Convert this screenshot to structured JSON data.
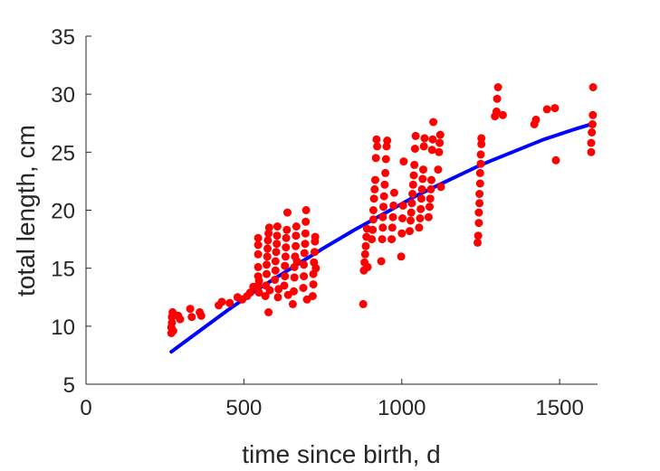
{
  "chart_data": {
    "type": "scatter",
    "xlabel": "time since birth, d",
    "ylabel": "total length, cm",
    "xlim": [
      0,
      1620
    ],
    "ylim": [
      5,
      35
    ],
    "xticks": [
      0,
      500,
      1000,
      1500
    ],
    "yticks": [
      5,
      10,
      15,
      20,
      25,
      30,
      35
    ],
    "grid": false,
    "colors": {
      "points": "#ff0000",
      "fit": "#0000ff",
      "axis": "#262626"
    },
    "series": [
      {
        "kind": "points",
        "points": [
          [
            270,
            9.4
          ],
          [
            270,
            9.9
          ],
          [
            272,
            10.3
          ],
          [
            272,
            10.8
          ],
          [
            274,
            11.2
          ],
          [
            276,
            9.6
          ],
          [
            278,
            11.0
          ],
          [
            292,
            10.9
          ],
          [
            298,
            10.6
          ],
          [
            330,
            11.5
          ],
          [
            335,
            10.8
          ],
          [
            360,
            11.2
          ],
          [
            365,
            10.9
          ],
          [
            420,
            11.8
          ],
          [
            430,
            12.1
          ],
          [
            455,
            12.0
          ],
          [
            480,
            12.5
          ],
          [
            495,
            12.3
          ],
          [
            510,
            12.6
          ],
          [
            520,
            12.9
          ],
          [
            530,
            13.4
          ],
          [
            545,
            13.5
          ],
          [
            545,
            14.3
          ],
          [
            545,
            15.1
          ],
          [
            545,
            16.2
          ],
          [
            545,
            17.0
          ],
          [
            545,
            17.6
          ],
          [
            548,
            13.9
          ],
          [
            548,
            12.9
          ],
          [
            568,
            12.6
          ],
          [
            570,
            13.5
          ],
          [
            572,
            14.5
          ],
          [
            572,
            15.3
          ],
          [
            574,
            16.0
          ],
          [
            575,
            16.7
          ],
          [
            576,
            17.4
          ],
          [
            578,
            18.0
          ],
          [
            580,
            18.5
          ],
          [
            578,
            11.2
          ],
          [
            582,
            13.1
          ],
          [
            598,
            14.0
          ],
          [
            600,
            14.8
          ],
          [
            600,
            15.6
          ],
          [
            602,
            16.4
          ],
          [
            604,
            17.1
          ],
          [
            605,
            17.8
          ],
          [
            606,
            18.6
          ],
          [
            608,
            12.5
          ],
          [
            610,
            13.2
          ],
          [
            628,
            13.5
          ],
          [
            630,
            14.3
          ],
          [
            630,
            15.2
          ],
          [
            632,
            16.0
          ],
          [
            633,
            16.8
          ],
          [
            634,
            17.6
          ],
          [
            636,
            18.3
          ],
          [
            638,
            19.8
          ],
          [
            640,
            12.7
          ],
          [
            655,
            11.9
          ],
          [
            658,
            13.0
          ],
          [
            660,
            14.2
          ],
          [
            660,
            15.1
          ],
          [
            662,
            16.0
          ],
          [
            664,
            16.9
          ],
          [
            665,
            17.8
          ],
          [
            666,
            18.6
          ],
          [
            668,
            15.6
          ],
          [
            688,
            13.3
          ],
          [
            690,
            14.3
          ],
          [
            690,
            15.3
          ],
          [
            692,
            16.3
          ],
          [
            694,
            17.1
          ],
          [
            695,
            18.0
          ],
          [
            696,
            19.0
          ],
          [
            697,
            20.0
          ],
          [
            700,
            12.3
          ],
          [
            718,
            12.6
          ],
          [
            720,
            13.6
          ],
          [
            720,
            14.5
          ],
          [
            722,
            15.5
          ],
          [
            724,
            16.4
          ],
          [
            725,
            17.3
          ],
          [
            726,
            17.7
          ],
          [
            728,
            15.0
          ],
          [
            878,
            11.9
          ],
          [
            880,
            14.8
          ],
          [
            882,
            15.5
          ],
          [
            884,
            16.2
          ],
          [
            886,
            16.9
          ],
          [
            888,
            17.7
          ],
          [
            890,
            18.4
          ],
          [
            892,
            15.1
          ],
          [
            905,
            17.5
          ],
          [
            908,
            18.3
          ],
          [
            910,
            19.2
          ],
          [
            910,
            20.0
          ],
          [
            912,
            21.0
          ],
          [
            914,
            21.8
          ],
          [
            916,
            22.6
          ],
          [
            918,
            24.5
          ],
          [
            920,
            26.1
          ],
          [
            922,
            25.5
          ],
          [
            935,
            15.6
          ],
          [
            938,
            17.5
          ],
          [
            940,
            18.5
          ],
          [
            940,
            19.4
          ],
          [
            942,
            20.3
          ],
          [
            944,
            21.2
          ],
          [
            946,
            22.2
          ],
          [
            948,
            23.2
          ],
          [
            950,
            24.4
          ],
          [
            952,
            25.5
          ],
          [
            954,
            26.0
          ],
          [
            968,
            17.5
          ],
          [
            970,
            18.5
          ],
          [
            972,
            19.4
          ],
          [
            974,
            20.4
          ],
          [
            976,
            21.5
          ],
          [
            998,
            16.0
          ],
          [
            1000,
            18.0
          ],
          [
            1002,
            19.3
          ],
          [
            1004,
            20.4
          ],
          [
            1006,
            24.2
          ],
          [
            1025,
            18.2
          ],
          [
            1028,
            19.1
          ],
          [
            1030,
            19.8
          ],
          [
            1032,
            20.6
          ],
          [
            1034,
            21.4
          ],
          [
            1036,
            22.2
          ],
          [
            1038,
            23.0
          ],
          [
            1040,
            23.9
          ],
          [
            1042,
            25.3
          ],
          [
            1044,
            26.4
          ],
          [
            1055,
            18.5
          ],
          [
            1058,
            19.3
          ],
          [
            1060,
            20.1
          ],
          [
            1062,
            21.0
          ],
          [
            1064,
            21.8
          ],
          [
            1066,
            22.7
          ],
          [
            1068,
            23.5
          ],
          [
            1070,
            25.5
          ],
          [
            1072,
            26.2
          ],
          [
            1085,
            19.4
          ],
          [
            1088,
            20.3
          ],
          [
            1090,
            21.0
          ],
          [
            1092,
            21.8
          ],
          [
            1094,
            22.6
          ],
          [
            1096,
            25.2
          ],
          [
            1098,
            26.1
          ],
          [
            1100,
            27.6
          ],
          [
            1115,
            23.5
          ],
          [
            1118,
            25.0
          ],
          [
            1120,
            25.8
          ],
          [
            1122,
            26.5
          ],
          [
            1124,
            22.0
          ],
          [
            1240,
            17.2
          ],
          [
            1242,
            17.8
          ],
          [
            1244,
            18.9
          ],
          [
            1244,
            19.8
          ],
          [
            1246,
            20.6
          ],
          [
            1246,
            21.4
          ],
          [
            1248,
            22.3
          ],
          [
            1248,
            23.2
          ],
          [
            1250,
            24.0
          ],
          [
            1250,
            24.8
          ],
          [
            1252,
            25.7
          ],
          [
            1252,
            26.2
          ],
          [
            1295,
            28.1
          ],
          [
            1300,
            28.5
          ],
          [
            1302,
            29.6
          ],
          [
            1305,
            30.6
          ],
          [
            1320,
            28.2
          ],
          [
            1420,
            27.4
          ],
          [
            1425,
            27.8
          ],
          [
            1460,
            28.7
          ],
          [
            1485,
            28.8
          ],
          [
            1488,
            24.3
          ],
          [
            1600,
            25.0
          ],
          [
            1600,
            25.8
          ],
          [
            1602,
            26.7
          ],
          [
            1604,
            27.4
          ],
          [
            1605,
            28.2
          ],
          [
            1606,
            30.6
          ]
        ]
      },
      {
        "kind": "fit-line",
        "x": [
          270,
          350,
          450,
          550,
          650,
          750,
          850,
          950,
          1050,
          1150,
          1250,
          1350,
          1450,
          1550,
          1610
        ],
        "y": [
          7.8,
          9.4,
          11.4,
          13.3,
          15.0,
          16.7,
          18.3,
          19.8,
          21.3,
          22.6,
          23.9,
          25.0,
          26.1,
          27.0,
          27.5
        ]
      }
    ]
  }
}
